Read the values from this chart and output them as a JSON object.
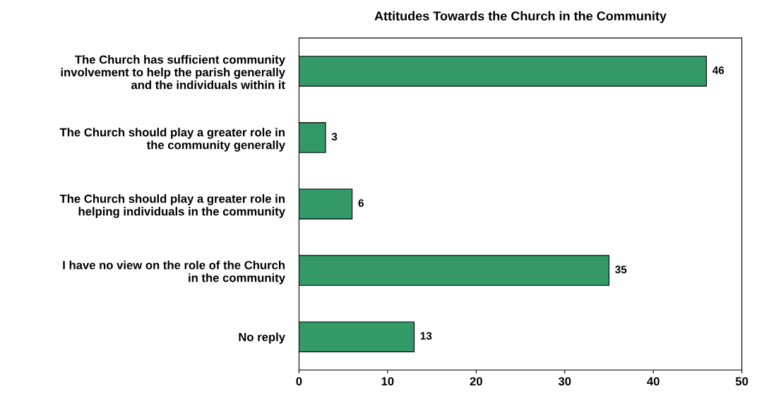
{
  "chart_data": {
    "type": "bar",
    "orientation": "horizontal",
    "title": "Attitudes Towards the Church in the Community",
    "categories": [
      "The Church has sufficient community\ninvolvement to help the parish generally\nand the individuals within it",
      "The Church should play a greater role in\nthe community generally",
      "The Church should play a greater role in\nhelping individuals in the community",
      "I have no view on the role of the Church\nin the community",
      "No reply"
    ],
    "values": [
      46,
      3,
      6,
      35,
      13
    ],
    "color": "#339966",
    "xlim": [
      0,
      50
    ],
    "xticks": [
      0,
      10,
      20,
      30,
      40,
      50
    ],
    "grid": false,
    "data_labels": true
  }
}
